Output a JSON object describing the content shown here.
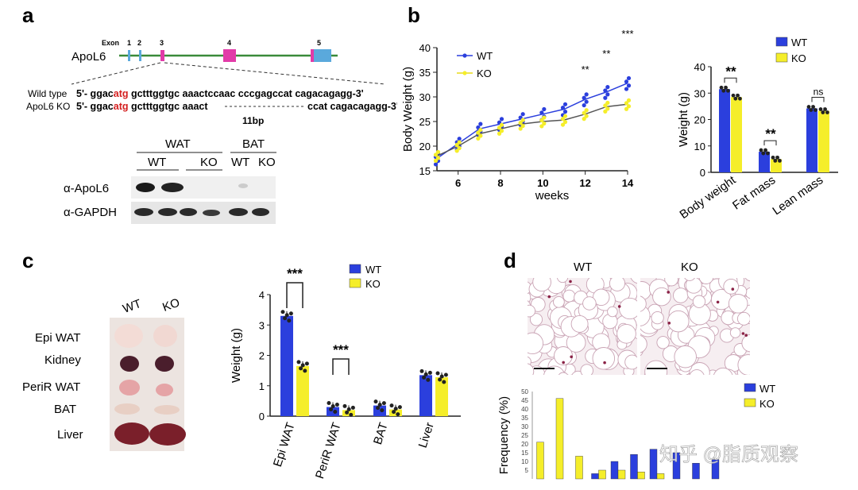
{
  "panels": {
    "a": "a",
    "b": "b",
    "c": "c",
    "d": "d"
  },
  "panel_a": {
    "exon_label": "Exon",
    "exon_numbers": [
      "1",
      "2",
      "3",
      "4",
      "5"
    ],
    "gene": "ApoL6",
    "wt_label": "Wild type",
    "ko_label": "ApoL6 KO",
    "wt_prefix": "5'- ggac",
    "wt_atg": "atg",
    "wt_rest": " gctttggtgc aaactccaac cccgagccat cagacagagg-3'",
    "ko_prefix": "5'- ggac",
    "ko_atg": "atg",
    "ko_mid": " gctttggtgc aaact",
    "ko_rest": "ccat cagacagagg-3'",
    "deletion": "11bp",
    "blot_groups": [
      "WAT",
      "BAT"
    ],
    "blot_lanes": [
      "WT",
      "KO",
      "WT",
      "KO"
    ],
    "blot_rows": [
      "α-ApoL6",
      "α-GAPDH"
    ]
  },
  "colors": {
    "wt": "#2b3fdd",
    "ko": "#f5ee2a",
    "exon_blue": "#5aa9dc",
    "exon_pink": "#e23ba8",
    "gene_line": "#3a8a3a",
    "atg": "#d42020"
  },
  "chart_data": [
    {
      "type": "line",
      "title": "",
      "xlabel": "weeks",
      "ylabel": "Body Weight (g)",
      "xlim": [
        5,
        14
      ],
      "ylim": [
        15,
        40
      ],
      "xticks": [
        "6",
        "8",
        "10",
        "12",
        "14"
      ],
      "yticks": [
        "15",
        "20",
        "25",
        "30",
        "35",
        "40"
      ],
      "x": [
        5,
        6,
        7,
        8,
        9,
        10,
        11,
        12,
        13,
        14
      ],
      "series": [
        {
          "name": "WT",
          "values": [
            17.5,
            20.5,
            23.5,
            24.5,
            25.5,
            26.5,
            27.5,
            29.5,
            31.0,
            32.8
          ]
        },
        {
          "name": "KO",
          "values": [
            18.0,
            20.0,
            22.5,
            23.5,
            24.5,
            25.0,
            25.3,
            26.5,
            28.0,
            28.5
          ]
        }
      ],
      "significance": [
        {
          "x": 12,
          "label": "**"
        },
        {
          "x": 13,
          "label": "**"
        },
        {
          "x": 14,
          "label": "***"
        }
      ],
      "legend": [
        "WT",
        "KO"
      ]
    },
    {
      "type": "bar",
      "ylabel": "Weight (g)",
      "ylim": [
        0,
        40
      ],
      "yticks": [
        "0",
        "10",
        "20",
        "30",
        "40"
      ],
      "categories": [
        "Body weight",
        "Fat mass",
        "Lean mass"
      ],
      "series": [
        {
          "name": "WT",
          "values": [
            31.5,
            7.8,
            24.2
          ]
        },
        {
          "name": "KO",
          "values": [
            28.5,
            5.0,
            23.3
          ]
        }
      ],
      "significance": [
        "**",
        "**",
        "ns"
      ],
      "legend": [
        "WT",
        "KO"
      ]
    },
    {
      "type": "bar",
      "ylabel": "Weight (g)",
      "ylim": [
        0,
        4
      ],
      "yticks": [
        "0",
        "1",
        "2",
        "3",
        "4"
      ],
      "categories": [
        "Epi WAT",
        "PeriR WAT",
        "BAT",
        "Liver"
      ],
      "series": [
        {
          "name": "WT",
          "values": [
            3.3,
            0.3,
            0.35,
            1.35
          ]
        },
        {
          "name": "KO",
          "values": [
            1.65,
            0.2,
            0.22,
            1.28
          ]
        }
      ],
      "significance": [
        "***",
        "***",
        "",
        ""
      ],
      "legend": [
        "WT",
        "KO"
      ]
    },
    {
      "type": "bar",
      "ylabel": "Frequency (%)",
      "ylim": [
        0,
        50
      ],
      "yticks": [
        "5",
        "10",
        "15",
        "20",
        "25",
        "30",
        "35",
        "40",
        "45",
        "50"
      ],
      "series": [
        {
          "name": "WT",
          "values": [
            0,
            0,
            0,
            3,
            10,
            14,
            17,
            15,
            9,
            11
          ]
        },
        {
          "name": "KO",
          "values": [
            21,
            46,
            13,
            5,
            5,
            4,
            3,
            0,
            0,
            0
          ]
        }
      ],
      "legend": [
        "WT",
        "KO"
      ]
    }
  ],
  "panel_c_photo": {
    "columns": [
      "WT",
      "KO"
    ],
    "rows": [
      "Epi WAT",
      "Kidney",
      "PeriR WAT",
      "BAT",
      "Liver"
    ]
  },
  "panel_d_histology": {
    "columns": [
      "WT",
      "KO"
    ]
  },
  "watermark": "知乎 @脂质观察"
}
